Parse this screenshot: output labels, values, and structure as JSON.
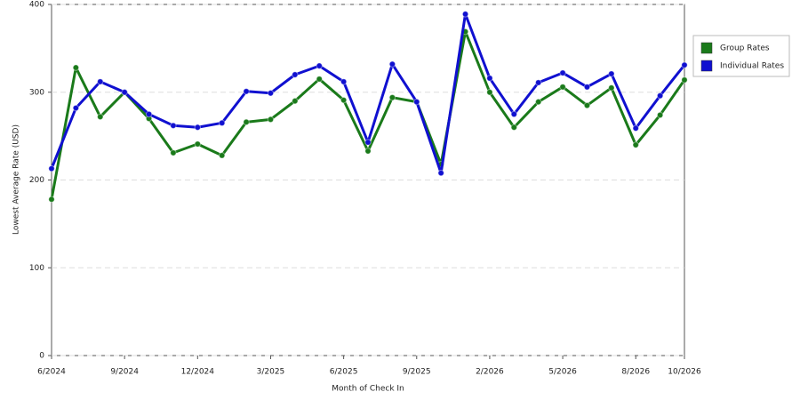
{
  "chart_data": {
    "type": "line",
    "x_label": "Month of Check In",
    "y_label": "Lowest Average Rate (USD)",
    "categories": [
      "6/2024",
      null,
      null,
      "9/2024",
      null,
      null,
      "12/2024",
      null,
      null,
      "3/2025",
      null,
      null,
      "6/2025",
      null,
      null,
      "9/2025",
      null,
      null,
      "2/2026",
      null,
      null,
      "5/2026",
      null,
      null,
      "8/2026",
      null,
      "10/2026"
    ],
    "series": [
      {
        "name": "Group Rates",
        "color": "#1a7a1a",
        "values": [
          178,
          328,
          272,
          300,
          270,
          231,
          241,
          228,
          266,
          269,
          290,
          315,
          291,
          233,
          294,
          289,
          218,
          369,
          300,
          260,
          289,
          306,
          285,
          305,
          240,
          274,
          314
        ]
      },
      {
        "name": "Individual Rates",
        "color": "#1010d0",
        "values": [
          213,
          282,
          312,
          300,
          275,
          262,
          260,
          265,
          301,
          299,
          320,
          330,
          312,
          243,
          332,
          289,
          208,
          389,
          316,
          275,
          311,
          322,
          306,
          321,
          259,
          296,
          331
        ]
      }
    ],
    "ylim": [
      0,
      400
    ],
    "yticks": [
      0,
      100,
      200,
      300,
      400
    ],
    "grid": true,
    "legend": "right"
  }
}
